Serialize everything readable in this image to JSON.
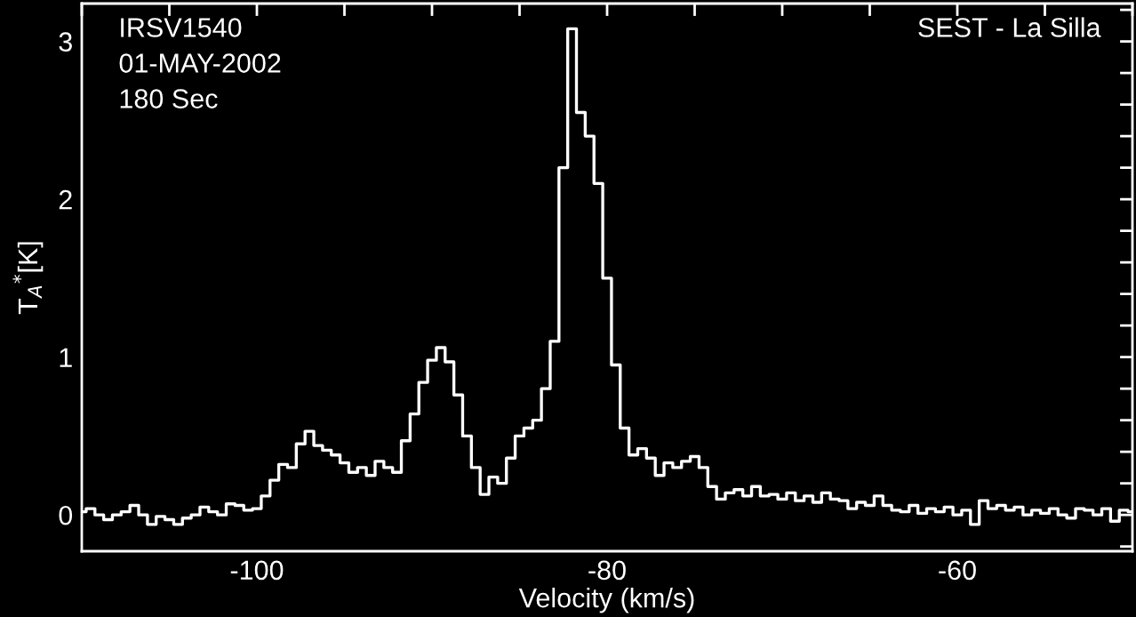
{
  "chart_data": {
    "type": "step",
    "xlabel": "Velocity (km/s)",
    "ylabel": "T$_{A}$$^{*}$[K]",
    "annotations": [
      "IRSV1540",
      "01-MAY-2002",
      "180 Sec",
      "SEST - La Silla"
    ],
    "x": [
      -110,
      -109.5,
      -109,
      -108.5,
      -108,
      -107.5,
      -107,
      -106.5,
      -106,
      -105.5,
      -105,
      -104.5,
      -104,
      -103.5,
      -103,
      -102.5,
      -102,
      -101.5,
      -101,
      -100.5,
      -100,
      -99.5,
      -99,
      -98.5,
      -98,
      -97.5,
      -97,
      -96.5,
      -96,
      -95.5,
      -95,
      -94.5,
      -94,
      -93.5,
      -93,
      -92.5,
      -92,
      -91.5,
      -91,
      -90.5,
      -90,
      -89.5,
      -89,
      -88.5,
      -88,
      -87.5,
      -87,
      -86.5,
      -86,
      -85.5,
      -85,
      -84.5,
      -84,
      -83.5,
      -83,
      -82.5,
      -82,
      -81.5,
      -81,
      -80.5,
      -80,
      -79.5,
      -79,
      -78.5,
      -78,
      -77.5,
      -77,
      -76.5,
      -76,
      -75.5,
      -75,
      -74.5,
      -74,
      -73.5,
      -73,
      -72.5,
      -72,
      -71.5,
      -71,
      -70.5,
      -70,
      -69.5,
      -69,
      -68.5,
      -68,
      -67.5,
      -67,
      -66.5,
      -66,
      -65.5,
      -65,
      -64.5,
      -64,
      -63.5,
      -63,
      -62.5,
      -62,
      -61.5,
      -61,
      -60.5,
      -60,
      -59.5,
      -59,
      -58.5,
      -58,
      -57.5,
      -57,
      -56.5,
      -56,
      -55.5,
      -55,
      -54.5,
      -54,
      -53.5,
      -53,
      -52.5,
      -52,
      -51.5,
      -51,
      -50.5,
      -50
    ],
    "series": [
      {
        "color": "#ffffff",
        "values": [
          0.02,
          0.04,
          0.0,
          -0.03,
          0.0,
          0.02,
          0.06,
          0.0,
          -0.06,
          -0.01,
          -0.03,
          -0.06,
          -0.02,
          0.0,
          0.05,
          0.02,
          0.0,
          0.07,
          0.06,
          0.03,
          0.04,
          0.12,
          0.22,
          0.32,
          0.3,
          0.45,
          0.53,
          0.44,
          0.41,
          0.38,
          0.33,
          0.27,
          0.3,
          0.25,
          0.34,
          0.3,
          0.27,
          0.47,
          0.64,
          0.84,
          0.98,
          1.06,
          0.97,
          0.76,
          0.5,
          0.3,
          0.13,
          0.24,
          0.2,
          0.36,
          0.5,
          0.55,
          0.6,
          0.8,
          1.1,
          2.2,
          3.08,
          2.55,
          2.4,
          2.1,
          1.5,
          0.95,
          0.55,
          0.38,
          0.42,
          0.36,
          0.25,
          0.33,
          0.3,
          0.34,
          0.37,
          0.3,
          0.18,
          0.1,
          0.14,
          0.16,
          0.12,
          0.18,
          0.12,
          0.13,
          0.1,
          0.14,
          0.09,
          0.12,
          0.08,
          0.14,
          0.1,
          0.09,
          0.04,
          0.08,
          0.06,
          0.12,
          0.06,
          0.03,
          0.02,
          0.06,
          0.01,
          0.04,
          0.02,
          0.05,
          0.0,
          0.03,
          -0.06,
          0.09,
          0.04,
          0.06,
          0.03,
          0.05,
          0.0,
          0.03,
          0.01,
          0.04,
          0.0,
          -0.02,
          0.04,
          0.03,
          0.0,
          0.04,
          -0.04,
          0.03,
          0.02
        ]
      }
    ],
    "xlim": [
      -110,
      -50
    ],
    "xticks": [
      {
        "value": -110,
        "label": null
      },
      {
        "value": -105,
        "label": null
      },
      -100,
      {
        "value": -95,
        "label": null
      },
      {
        "value": -90,
        "label": null
      },
      {
        "value": -85,
        "label": null
      },
      -80,
      {
        "value": -75,
        "label": null
      },
      {
        "value": -70,
        "label": null
      },
      {
        "value": -65,
        "label": null
      },
      -60,
      {
        "value": -55,
        "label": null
      },
      {
        "value": -50,
        "label": null
      }
    ],
    "ylim": [
      -0.23,
      3.24
    ],
    "yticks": [
      {
        "value": -0.2,
        "label": null
      },
      0,
      {
        "value": 0.2,
        "label": null
      },
      {
        "value": 0.4,
        "label": null
      },
      {
        "value": 0.6,
        "label": null
      },
      {
        "value": 0.8,
        "label": null
      },
      1,
      {
        "value": 1.2,
        "label": null
      },
      {
        "value": 1.4,
        "label": null
      },
      {
        "value": 1.6,
        "label": null
      },
      {
        "value": 1.8,
        "label": null
      },
      2,
      {
        "value": 2.2,
        "label": null
      },
      {
        "value": 2.4,
        "label": null
      },
      {
        "value": 2.6,
        "label": null
      },
      {
        "value": 2.8,
        "label": null
      },
      3,
      {
        "value": 3.2,
        "label": null
      }
    ]
  }
}
